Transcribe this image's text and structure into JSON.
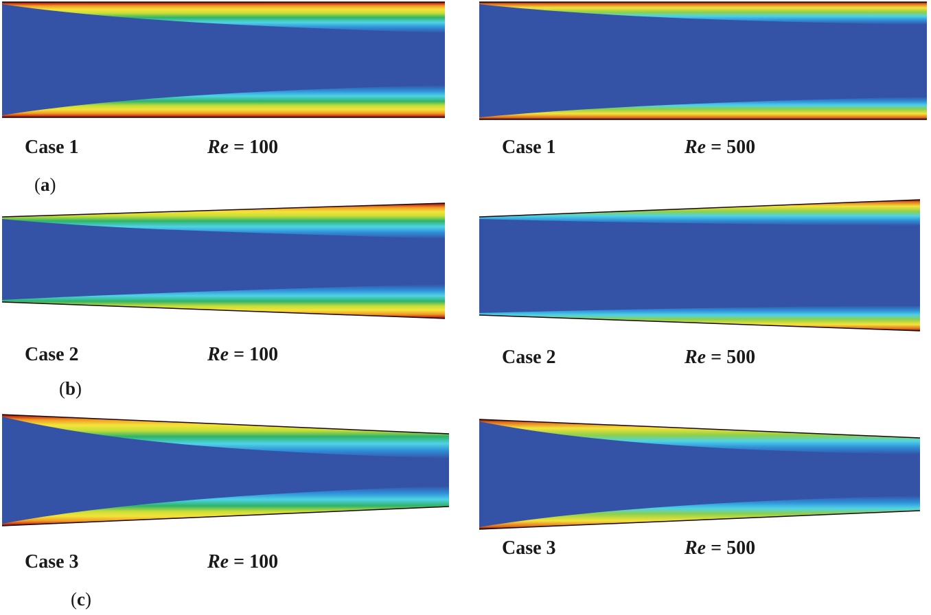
{
  "colors": {
    "core": "#3553a6",
    "ramp": [
      "#3553a6",
      "#2f8fd8",
      "#4fd3e6",
      "#2fb36a",
      "#c8de37",
      "#f4e33a",
      "#f09a25",
      "#c43016",
      "#5a0d05"
    ]
  },
  "panels": [
    {
      "case": "Case 1",
      "re_symbol": "Re",
      "re_value": "= 100"
    },
    {
      "case": "Case 1",
      "re_symbol": "Re",
      "re_value": "= 500"
    },
    {
      "case": "Case 2",
      "re_symbol": "Re",
      "re_value": "= 100"
    },
    {
      "case": "Case 2",
      "re_symbol": "Re",
      "re_value": "= 500"
    },
    {
      "case": "Case 3",
      "re_symbol": "Re",
      "re_value": "= 100"
    },
    {
      "case": "Case 3",
      "re_symbol": "Re",
      "re_value": "= 500"
    }
  ],
  "subfigures": [
    {
      "letter": "a"
    },
    {
      "letter": "b"
    },
    {
      "letter": "c"
    }
  ]
}
